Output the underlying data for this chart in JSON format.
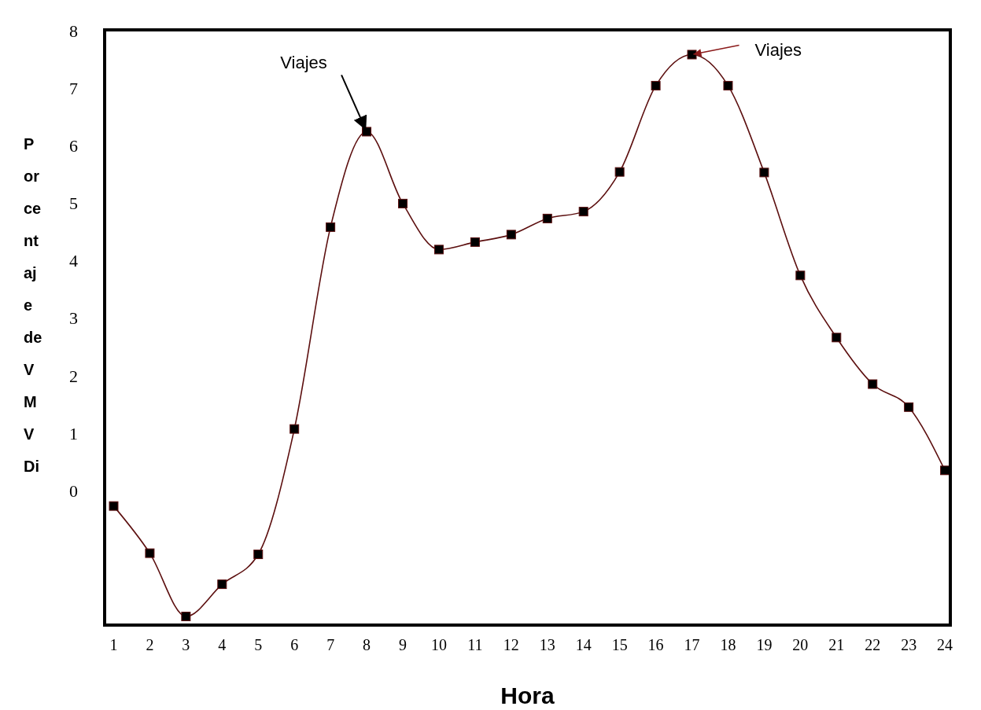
{
  "chart_data": {
    "type": "line",
    "xlabel": "Hora",
    "ylabel": "Porcentaje de VMVDi",
    "x": [
      1,
      2,
      3,
      4,
      5,
      6,
      7,
      8,
      9,
      10,
      11,
      12,
      13,
      14,
      15,
      16,
      17,
      18,
      19,
      20,
      21,
      22,
      23,
      24
    ],
    "series": [
      {
        "color": "#5c0f0f",
        "values": [
          -0.23,
          -1.05,
          -2.15,
          -1.59,
          -1.07,
          1.11,
          4.62,
          6.28,
          5.03,
          4.23,
          4.36,
          4.49,
          4.77,
          4.89,
          5.58,
          7.08,
          7.62,
          7.08,
          5.57,
          3.78,
          2.7,
          1.89,
          1.49,
          0.39
        ]
      }
    ],
    "xlim": [
      0.75,
      24.15
    ],
    "xticks": [
      1,
      2,
      3,
      4,
      5,
      6,
      7,
      8,
      9,
      10,
      11,
      12,
      13,
      14,
      15,
      16,
      17,
      18,
      19,
      20,
      21,
      22,
      23,
      24
    ],
    "ylim": [
      -2.3,
      8.05
    ],
    "yticks": [
      0,
      1,
      2,
      3,
      4,
      5,
      6,
      7,
      8
    ],
    "marker": "square",
    "line_style": "solid",
    "grid": false,
    "annotations": [
      {
        "text": "Viajes",
        "x": 8,
        "y": 6.28
      },
      {
        "text": "Viajes",
        "x": 17,
        "y": 7.62
      }
    ]
  }
}
